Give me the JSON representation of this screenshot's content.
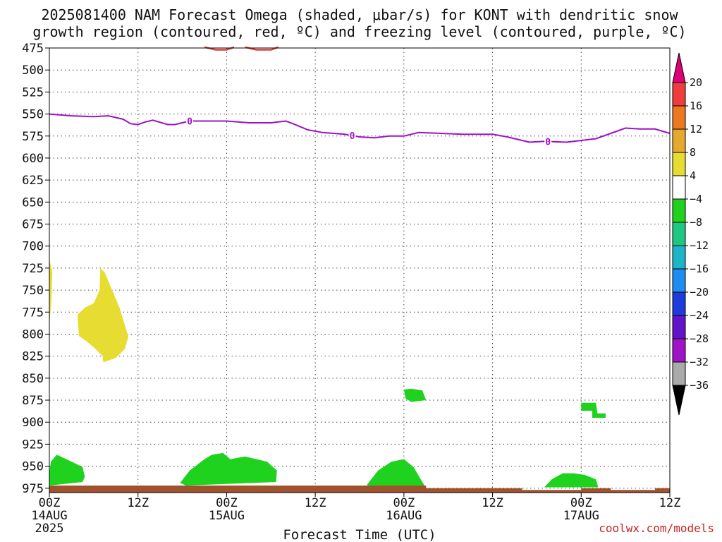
{
  "title_lines": [
    "2025081400 NAM Forecast Omega (shaded, μbar/s) for KONT with dendritic snow",
    "growth region (contoured, red, ºC) and freezing level (contoured, purple, ºC)"
  ],
  "watermark": "coolwx.com/models",
  "chart_data": {
    "type": "time-height",
    "xlabel": "Forecast Time (UTC)",
    "ylabel": "",
    "x_ticks": [
      {
        "hour": 0,
        "label": "00Z",
        "sub": "14AUG",
        "sub2": "2025"
      },
      {
        "hour": 12,
        "label": "12Z",
        "sub": "",
        "sub2": ""
      },
      {
        "hour": 24,
        "label": "00Z",
        "sub": "15AUG",
        "sub2": ""
      },
      {
        "hour": 36,
        "label": "12Z",
        "sub": "",
        "sub2": ""
      },
      {
        "hour": 48,
        "label": "00Z",
        "sub": "16AUG",
        "sub2": ""
      },
      {
        "hour": 60,
        "label": "12Z",
        "sub": "",
        "sub2": ""
      },
      {
        "hour": 72,
        "label": "00Z",
        "sub": "17AUG",
        "sub2": ""
      },
      {
        "hour": 84,
        "label": "12Z",
        "sub": "",
        "sub2": ""
      }
    ],
    "xlim": [
      0,
      84
    ],
    "y_ticks": [
      475,
      500,
      525,
      550,
      575,
      600,
      625,
      650,
      675,
      700,
      725,
      750,
      775,
      800,
      825,
      850,
      875,
      900,
      925,
      950,
      975
    ],
    "ylim": [
      475,
      980
    ],
    "colorbar": {
      "labels": [
        "20",
        "16",
        "12",
        "8",
        "4",
        "−4",
        "−8",
        "−12",
        "−16",
        "−20",
        "−24",
        "−28",
        "−32",
        "−36"
      ],
      "colors": [
        "#dd0077",
        "#f03c3c",
        "#ee7722",
        "#e6a82e",
        "#e6dc32",
        "#ffffff",
        "#1ed21e",
        "#1ec882",
        "#1eb4c8",
        "#1e8cf0",
        "#1e3cdc",
        "#6414c8",
        "#a014c8",
        "#aaaaaa",
        "#000000"
      ]
    },
    "freezing_level": {
      "label": "0",
      "color": "#a010c8",
      "points": [
        [
          0,
          550
        ],
        [
          3,
          552
        ],
        [
          6,
          553
        ],
        [
          8,
          552
        ],
        [
          10,
          556
        ],
        [
          11,
          561
        ],
        [
          12,
          562
        ],
        [
          13,
          559
        ],
        [
          14,
          557
        ],
        [
          16,
          562
        ],
        [
          17,
          562
        ],
        [
          19,
          558
        ],
        [
          24,
          558
        ],
        [
          27,
          560
        ],
        [
          30,
          560
        ],
        [
          32,
          558
        ],
        [
          33,
          561
        ],
        [
          35,
          568
        ],
        [
          37,
          571
        ],
        [
          40,
          573
        ],
        [
          42,
          576
        ],
        [
          44,
          577
        ],
        [
          46,
          575
        ],
        [
          48,
          575
        ],
        [
          50,
          571
        ],
        [
          53,
          572
        ],
        [
          56,
          573
        ],
        [
          60,
          573
        ],
        [
          62,
          576
        ],
        [
          64,
          580
        ],
        [
          65,
          582
        ],
        [
          67,
          581
        ],
        [
          70,
          582
        ],
        [
          72,
          580
        ],
        [
          74,
          578
        ],
        [
          76,
          572
        ],
        [
          78,
          566
        ],
        [
          80,
          567
        ],
        [
          82,
          567
        ],
        [
          84,
          572
        ]
      ],
      "label_hours": [
        19,
        41,
        67.5
      ]
    },
    "dgz_contours": [
      {
        "color": "#e0403c",
        "points": [
          [
            21,
            474
          ],
          [
            22.5,
            477
          ],
          [
            24,
            477
          ],
          [
            25,
            474
          ]
        ]
      },
      {
        "color": "#e0403c",
        "points": [
          [
            26.5,
            474
          ],
          [
            28,
            477
          ],
          [
            30,
            477
          ],
          [
            31,
            474
          ]
        ]
      }
    ],
    "omega_regions": [
      {
        "value_bin": "4 to 8",
        "color": "#e6dc32",
        "points": [
          [
            0,
            715
          ],
          [
            0.4,
            730
          ],
          [
            0.3,
            760
          ],
          [
            0,
            790
          ]
        ]
      },
      {
        "value_bin": "4 to 8",
        "color": "#e6dc32",
        "points": [
          [
            6.9,
            725
          ],
          [
            7.5,
            730
          ],
          [
            9.5,
            770
          ],
          [
            10.7,
            803
          ],
          [
            10.2,
            817
          ],
          [
            9,
            827
          ],
          [
            7.3,
            832
          ],
          [
            7.2,
            825
          ],
          [
            6.3,
            817
          ],
          [
            5,
            808
          ],
          [
            4,
            802
          ],
          [
            3.8,
            778
          ],
          [
            4.8,
            770
          ],
          [
            6,
            765
          ],
          [
            6.8,
            750
          ]
        ]
      },
      {
        "value_bin": "-4 to -8",
        "color": "#1ed21e",
        "points": [
          [
            0,
            958
          ],
          [
            0.2,
            945
          ],
          [
            1,
            937
          ],
          [
            2.3,
            942
          ],
          [
            4.5,
            951
          ],
          [
            4.8,
            962
          ],
          [
            4.5,
            968
          ],
          [
            0,
            972
          ]
        ]
      },
      {
        "value_bin": "-4 to -8",
        "color": "#1ed21e",
        "points": [
          [
            17.7,
            969
          ],
          [
            19,
            955
          ],
          [
            21,
            942
          ],
          [
            22,
            937
          ],
          [
            23.5,
            935
          ],
          [
            24.5,
            942
          ],
          [
            26.5,
            939
          ],
          [
            29.5,
            945
          ],
          [
            30.8,
            955
          ],
          [
            30.7,
            968
          ],
          [
            18.5,
            972
          ]
        ]
      },
      {
        "value_bin": "-4 to -8",
        "color": "#1ed21e",
        "points": [
          [
            43,
            971
          ],
          [
            44.5,
            955
          ],
          [
            46.3,
            945
          ],
          [
            48,
            942
          ],
          [
            49.3,
            951
          ],
          [
            50.5,
            968
          ],
          [
            51,
            975
          ],
          [
            43.5,
            975
          ]
        ]
      },
      {
        "value_bin": "-4 to -8",
        "color": "#1ed21e",
        "points": [
          [
            48,
            863
          ],
          [
            49,
            862
          ],
          [
            50.5,
            864
          ],
          [
            51,
            875
          ],
          [
            49,
            877
          ],
          [
            48.2,
            873
          ]
        ]
      },
      {
        "value_bin": "-4 to -8",
        "color": "#1ed21e",
        "points": [
          [
            67,
            974
          ],
          [
            68,
            965
          ],
          [
            69.5,
            958
          ],
          [
            71,
            958
          ],
          [
            72.5,
            960
          ],
          [
            74,
            965
          ],
          [
            74.3,
            974
          ]
        ]
      },
      {
        "value_bin": "-4 to -8",
        "color": "#1ed21e",
        "points": [
          [
            72,
            878
          ],
          [
            74,
            878
          ],
          [
            74.2,
            890
          ],
          [
            75.3,
            890
          ],
          [
            75.3,
            895
          ],
          [
            73.5,
            895
          ],
          [
            73.5,
            887
          ],
          [
            72,
            887
          ]
        ]
      }
    ],
    "terrain": {
      "color": "#a0522d",
      "points": [
        [
          0,
          972
        ],
        [
          51,
          972
        ],
        [
          51,
          975
        ],
        [
          64,
          975
        ],
        [
          64,
          977
        ],
        [
          72,
          977
        ],
        [
          72,
          975
        ],
        [
          76,
          975
        ],
        [
          76,
          977
        ],
        [
          82,
          977
        ],
        [
          82,
          975
        ],
        [
          84,
          975
        ]
      ]
    }
  }
}
